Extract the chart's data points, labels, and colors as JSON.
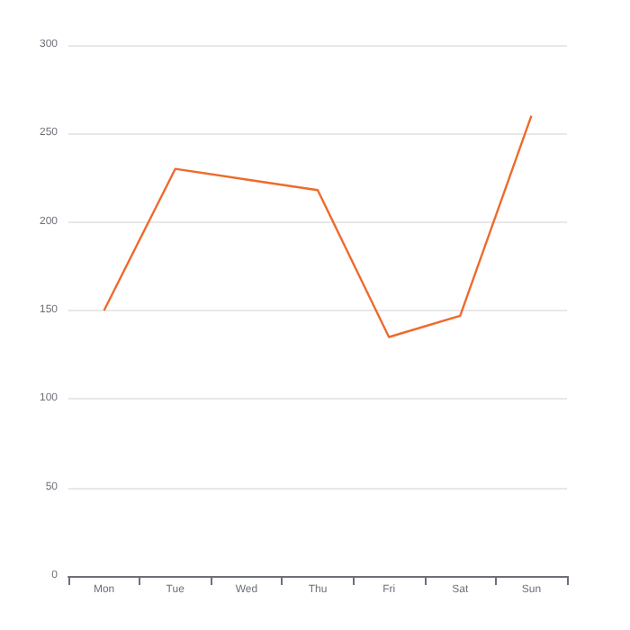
{
  "chart_data": {
    "type": "line",
    "categories": [
      "Mon",
      "Tue",
      "Wed",
      "Thu",
      "Fri",
      "Sat",
      "Sun"
    ],
    "series": [
      {
        "color": "#ee6a2c",
        "values": [
          150,
          230,
          224,
          218,
          135,
          147,
          260
        ]
      }
    ],
    "ylim": [
      0,
      300
    ],
    "yticks": [
      0,
      50,
      100,
      150,
      200,
      250,
      300
    ],
    "grid": "y",
    "marker": "none",
    "line_style": "solid"
  }
}
